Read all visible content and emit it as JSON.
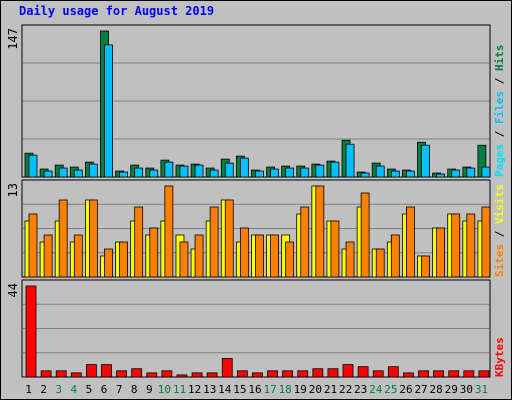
{
  "title": "Daily usage for August 2019",
  "colors": {
    "title": "#0000ff",
    "hits": "#008040",
    "files": "#00c0ff",
    "pages": "#00e0ff",
    "visits": "#ffff00",
    "sites": "#ff8000",
    "kbytes": "#ff0000",
    "weekend_label": "#008040",
    "weekday_label": "#000000",
    "panel_bg": "#c0c0c0",
    "frame_bg": "#c0c0c0"
  },
  "chart_data": [
    {
      "type": "bar",
      "name": "hits-files-pages",
      "ymax_label": "147",
      "ylim": [
        0,
        147
      ],
      "series_labels": [
        "Pages",
        "/",
        "Files",
        "/",
        "Hits"
      ],
      "series": [
        {
          "name": "Hits",
          "values": [
            24,
            8,
            12,
            10,
            15,
            147,
            6,
            12,
            9,
            17,
            12,
            13,
            9,
            18,
            21,
            7,
            10,
            11,
            11,
            13,
            16,
            37,
            5,
            14,
            8,
            7,
            35,
            4,
            8,
            10,
            32
          ]
        },
        {
          "name": "Files",
          "values": [
            22,
            6,
            9,
            7,
            13,
            133,
            5,
            9,
            7,
            15,
            11,
            12,
            7,
            14,
            19,
            6,
            8,
            9,
            9,
            12,
            15,
            33,
            4,
            11,
            6,
            6,
            32,
            3,
            7,
            9,
            10
          ]
        }
      ]
    },
    {
      "type": "bar",
      "name": "visits-sites",
      "ymax_label": "13",
      "ylim": [
        0,
        13
      ],
      "series_labels": [
        "Sites",
        "/",
        "Visits"
      ],
      "series": [
        {
          "name": "Visits",
          "values": [
            8,
            5,
            8,
            5,
            11,
            3,
            5,
            8,
            6,
            8,
            6,
            4,
            8,
            11,
            5,
            6,
            6,
            6,
            9,
            13,
            8,
            4,
            10,
            4,
            5,
            9,
            3,
            7,
            9,
            8,
            8
          ]
        },
        {
          "name": "Sites",
          "values": [
            9,
            6,
            11,
            6,
            11,
            4,
            5,
            10,
            7,
            13,
            5,
            6,
            10,
            11,
            7,
            6,
            6,
            5,
            10,
            13,
            8,
            5,
            12,
            4,
            6,
            10,
            3,
            7,
            9,
            9,
            10
          ]
        }
      ]
    },
    {
      "type": "bar",
      "name": "kbytes",
      "ymax_label": "44",
      "ylim": [
        0,
        44
      ],
      "series_labels": [
        "KBytes"
      ],
      "series": [
        {
          "name": "KBytes",
          "values": [
            44,
            3,
            3,
            2,
            6,
            6,
            3,
            4,
            2,
            3,
            1,
            2,
            2,
            9,
            3,
            2,
            3,
            3,
            3,
            4,
            4,
            6,
            5,
            3,
            5,
            2,
            3,
            3,
            3,
            3,
            3
          ]
        }
      ]
    }
  ],
  "days": [
    "1",
    "2",
    "3",
    "4",
    "5",
    "6",
    "7",
    "8",
    "9",
    "10",
    "11",
    "12",
    "13",
    "14",
    "15",
    "16",
    "17",
    "18",
    "19",
    "20",
    "21",
    "22",
    "23",
    "24",
    "25",
    "26",
    "27",
    "28",
    "29",
    "30",
    "31"
  ],
  "weekend_days": [
    3,
    4,
    10,
    11,
    17,
    18,
    24,
    25,
    31
  ]
}
